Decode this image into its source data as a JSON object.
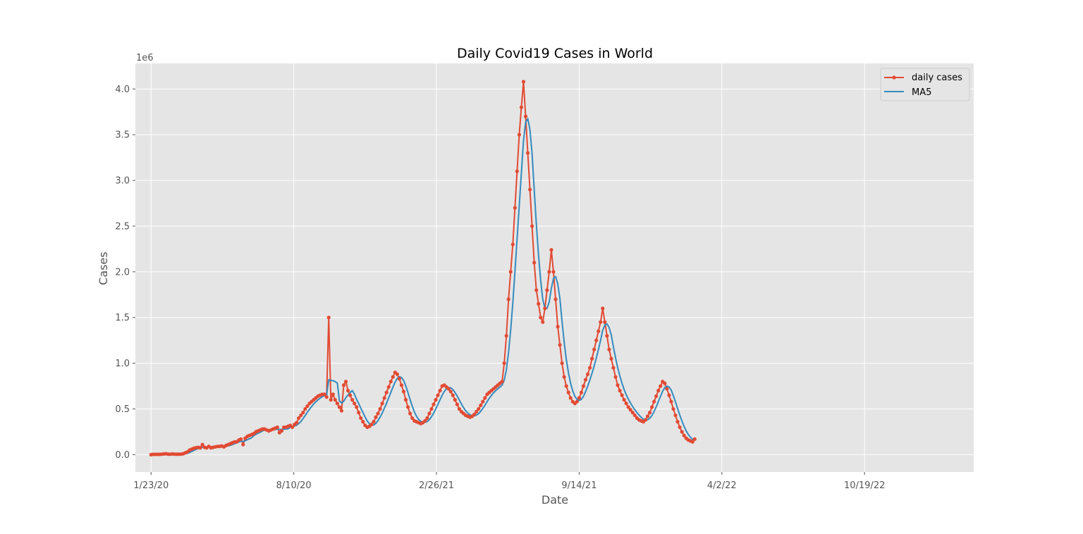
{
  "chart_data": {
    "type": "line",
    "title": "Daily Covid19 Cases in World",
    "xlabel": "Date",
    "ylabel": "Cases",
    "y_offset_label": "1e6",
    "y_scale_factor": 1000000,
    "ylim": [
      -190000,
      4280000
    ],
    "xlim": [
      "2020-01-01",
      "2023-03-21"
    ],
    "grid": true,
    "legend_position": "upper right",
    "x_tick_labels": [
      {
        "date": "2020-01-23",
        "label": "1/23/20"
      },
      {
        "date": "2020-08-10",
        "label": "8/10/20"
      },
      {
        "date": "2021-02-26",
        "label": "2/26/21"
      },
      {
        "date": "2021-09-14",
        "label": "9/14/21"
      },
      {
        "date": "2022-04-02",
        "label": "4/2/22"
      },
      {
        "date": "2022-10-19",
        "label": "10/19/22"
      }
    ],
    "y_ticks": [
      0,
      500000,
      1000000,
      1500000,
      2000000,
      2500000,
      3000000,
      3500000,
      4000000
    ],
    "y_tick_labels": [
      "0.0",
      "0.5",
      "1.0",
      "1.5",
      "2.0",
      "2.5",
      "3.0",
      "3.5",
      "4.0"
    ],
    "series": [
      {
        "name": "daily cases",
        "color": "#E24A33",
        "marker": "circle",
        "x_start": "2020-01-23",
        "x_step_days": 3,
        "values": [
          0,
          3000,
          3000,
          3000,
          3000,
          5000,
          8000,
          10000,
          5000,
          5000,
          8000,
          5000,
          5000,
          5000,
          5000,
          10000,
          20000,
          30000,
          50000,
          60000,
          70000,
          75000,
          80000,
          75000,
          110000,
          80000,
          75000,
          90000,
          75000,
          80000,
          85000,
          90000,
          90000,
          95000,
          85000,
          100000,
          110000,
          120000,
          130000,
          140000,
          140000,
          160000,
          170000,
          110000,
          180000,
          200000,
          210000,
          220000,
          230000,
          250000,
          260000,
          270000,
          280000,
          280000,
          270000,
          260000,
          270000,
          280000,
          290000,
          300000,
          240000,
          260000,
          300000,
          300000,
          310000,
          320000,
          300000,
          330000,
          350000,
          400000,
          430000,
          460000,
          500000,
          530000,
          560000,
          580000,
          600000,
          620000,
          640000,
          650000,
          660000,
          660000,
          630000,
          1500000,
          600000,
          660000,
          600000,
          560000,
          520000,
          480000,
          760000,
          800000,
          700000,
          650000,
          600000,
          560000,
          520000,
          460000,
          400000,
          360000,
          320000,
          300000,
          310000,
          330000,
          360000,
          410000,
          450000,
          500000,
          560000,
          620000,
          680000,
          740000,
          800000,
          850000,
          900000,
          880000,
          830000,
          760000,
          690000,
          600000,
          520000,
          450000,
          400000,
          370000,
          360000,
          350000,
          340000,
          350000,
          370000,
          400000,
          450000,
          500000,
          550000,
          600000,
          650000,
          700000,
          750000,
          760000,
          740000,
          720000,
          690000,
          650000,
          600000,
          550000,
          500000,
          470000,
          450000,
          430000,
          420000,
          410000,
          420000,
          440000,
          470000,
          500000,
          540000,
          580000,
          620000,
          660000,
          680000,
          700000,
          720000,
          740000,
          760000,
          780000,
          800000,
          1000000,
          1300000,
          1700000,
          2000000,
          2300000,
          2700000,
          3100000,
          3500000,
          3800000,
          4080000,
          3700000,
          3300000,
          2900000,
          2500000,
          2100000,
          1800000,
          1650000,
          1500000,
          1450000,
          1600000,
          1800000,
          2000000,
          2240000,
          2000000,
          1700000,
          1400000,
          1200000,
          1000000,
          850000,
          750000,
          680000,
          620000,
          580000,
          560000,
          580000,
          620000,
          680000,
          750000,
          820000,
          880000,
          950000,
          1050000,
          1150000,
          1250000,
          1350000,
          1450000,
          1600000,
          1450000,
          1300000,
          1150000,
          1050000,
          950000,
          850000,
          760000,
          700000,
          650000,
          600000,
          560000,
          520000,
          490000,
          460000,
          430000,
          400000,
          380000,
          370000,
          360000,
          380000,
          420000,
          460000,
          520000,
          580000,
          640000,
          700000,
          750000,
          800000,
          780000,
          720000,
          650000,
          580000,
          500000,
          430000,
          360000,
          300000,
          250000,
          210000,
          180000,
          160000,
          150000,
          140000,
          170000
        ]
      },
      {
        "name": "MA5",
        "color": "#348ABD",
        "marker": "none",
        "x_start": "2020-01-23",
        "x_step_days": 3
      }
    ]
  }
}
